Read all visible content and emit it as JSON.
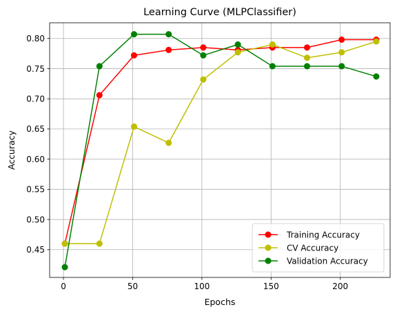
{
  "chart_data": {
    "type": "line",
    "title": "Learning Curve (MLPClassifier)",
    "xlabel": "Epochs",
    "ylabel": "Accuracy",
    "x": [
      1,
      26,
      51,
      76,
      101,
      126,
      151,
      176,
      201,
      226
    ],
    "xlim": [
      -10,
      236
    ],
    "ylim": [
      0.404,
      0.826
    ],
    "xticks": [
      0,
      50,
      100,
      150,
      200
    ],
    "yticks": [
      0.45,
      0.5,
      0.55,
      0.6,
      0.65,
      0.7,
      0.75,
      0.8
    ],
    "ytick_labels": [
      "0.45",
      "0.50",
      "0.55",
      "0.60",
      "0.65",
      "0.70",
      "0.75",
      "0.80"
    ],
    "grid": true,
    "legend_position": "lower-right",
    "series": [
      {
        "name": "Training Accuracy",
        "color": "#ff0000",
        "values": [
          0.46,
          0.706,
          0.772,
          0.781,
          0.785,
          0.781,
          0.785,
          0.785,
          0.798,
          0.798
        ]
      },
      {
        "name": "CV Accuracy",
        "color": "#bfbf00",
        "values": [
          0.46,
          0.46,
          0.654,
          0.627,
          0.732,
          0.777,
          0.79,
          0.768,
          0.777,
          0.795
        ]
      },
      {
        "name": "Validation Accuracy",
        "color": "#008000",
        "values": [
          0.421,
          0.754,
          0.807,
          0.807,
          0.772,
          0.79,
          0.754,
          0.754,
          0.754,
          0.737
        ]
      }
    ]
  }
}
